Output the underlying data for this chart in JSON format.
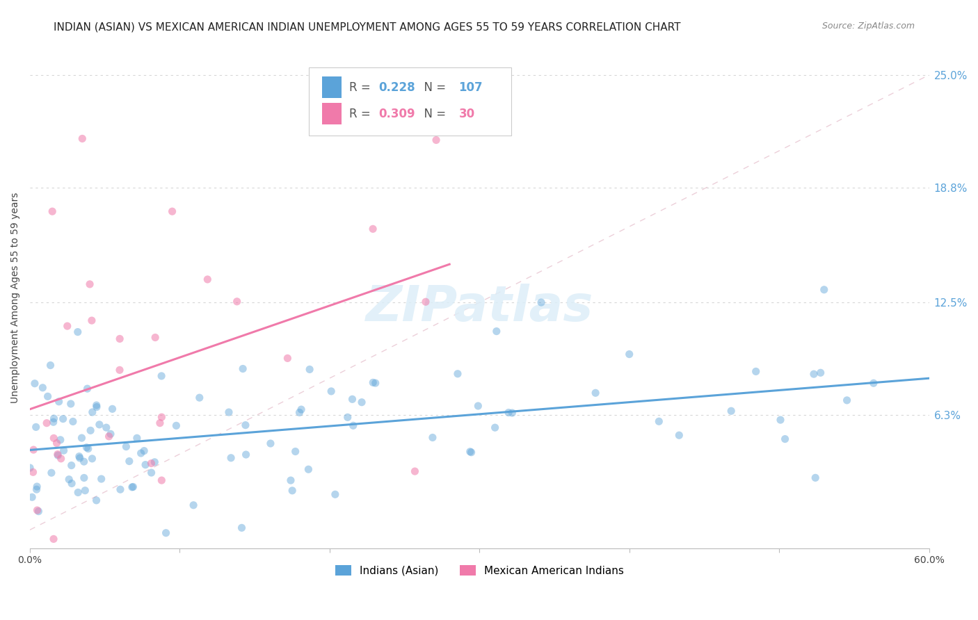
{
  "title": "INDIAN (ASIAN) VS MEXICAN AMERICAN INDIAN UNEMPLOYMENT AMONG AGES 55 TO 59 YEARS CORRELATION CHART",
  "source_text": "Source: ZipAtlas.com",
  "ylabel": "Unemployment Among Ages 55 to 59 years",
  "xlim": [
    0.0,
    0.6
  ],
  "ylim": [
    -0.01,
    0.265
  ],
  "x_ticks": [
    0.0,
    0.1,
    0.2,
    0.3,
    0.4,
    0.5,
    0.6
  ],
  "x_tick_labels": [
    "0.0%",
    "",
    "",
    "",
    "",
    "",
    "60.0%"
  ],
  "y_tick_labels_right": [
    "25.0%",
    "18.8%",
    "12.5%",
    "6.3%"
  ],
  "y_ticks_right": [
    0.25,
    0.188,
    0.125,
    0.063
  ],
  "legend_entries": [
    {
      "label": "Indians (Asian)",
      "color": "#5ba3d9"
    },
    {
      "label": "Mexican American Indians",
      "color": "#f07aaa"
    }
  ],
  "R_asian": 0.228,
  "N_asian": 107,
  "R_mexican": 0.309,
  "N_mexican": 30,
  "blue_color": "#5ba3d9",
  "pink_color": "#f07aaa",
  "background_color": "#ffffff",
  "grid_color": "#cccccc",
  "ref_line_color": "#e0b0c0",
  "watermark_color": "#ddeef8"
}
